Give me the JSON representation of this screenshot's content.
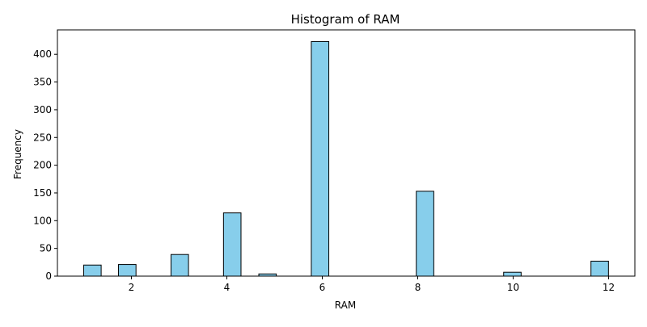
{
  "chart_data": {
    "type": "bar",
    "title": "Histogram of RAM",
    "xlabel": "RAM",
    "ylabel": "Frequency",
    "xlim": [
      0.45,
      12.55
    ],
    "ylim": [
      0,
      444
    ],
    "xticks": [
      2,
      4,
      6,
      8,
      10,
      12
    ],
    "yticks": [
      0,
      50,
      100,
      150,
      200,
      250,
      300,
      350,
      400
    ],
    "bin_width": 0.3667,
    "bins": [
      {
        "x_start": 1.0,
        "value": 20
      },
      {
        "x_start": 1.73,
        "value": 21
      },
      {
        "x_start": 2.83,
        "value": 39
      },
      {
        "x_start": 3.93,
        "value": 114
      },
      {
        "x_start": 4.67,
        "value": 4
      },
      {
        "x_start": 5.77,
        "value": 423
      },
      {
        "x_start": 7.97,
        "value": 153
      },
      {
        "x_start": 9.8,
        "value": 7
      },
      {
        "x_start": 11.63,
        "value": 27
      }
    ],
    "grid": false,
    "legend": "none",
    "bar_color": "#87ceeb",
    "edge_color": "#000000"
  }
}
